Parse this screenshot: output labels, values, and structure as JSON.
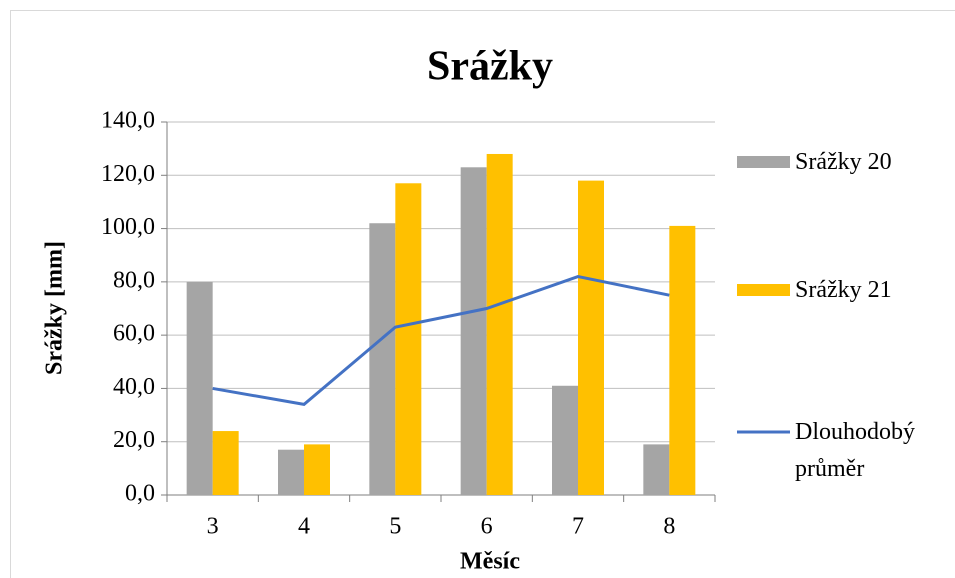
{
  "chart_data": {
    "type": "bar",
    "title": "Srážky",
    "xlabel": "Měsíc",
    "ylabel": "Srážky [mm]",
    "categories": [
      "3",
      "4",
      "5",
      "6",
      "7",
      "8"
    ],
    "series": [
      {
        "name": "Srážky 20",
        "type": "bar",
        "color": "#a5a5a5",
        "values": [
          80,
          17,
          102,
          123,
          41,
          19
        ]
      },
      {
        "name": "Srážky 21",
        "type": "bar",
        "color": "#ffc000",
        "values": [
          24,
          19,
          117,
          128,
          118,
          101
        ]
      },
      {
        "name": "Dlouhodobý průměr",
        "type": "line",
        "color": "#4472c4",
        "values": [
          40,
          34,
          63,
          70,
          82,
          75
        ]
      }
    ],
    "ylim": [
      0,
      140
    ],
    "yticks": [
      {
        "value": 0,
        "label": "0,0"
      },
      {
        "value": 20,
        "label": "20,0"
      },
      {
        "value": 40,
        "label": "40,0"
      },
      {
        "value": 60,
        "label": "60,0"
      },
      {
        "value": 80,
        "label": "80,0"
      },
      {
        "value": 100,
        "label": "100,0"
      },
      {
        "value": 120,
        "label": "120,0"
      },
      {
        "value": 140,
        "label": "140,0"
      }
    ],
    "grid": true,
    "legend": "right"
  }
}
